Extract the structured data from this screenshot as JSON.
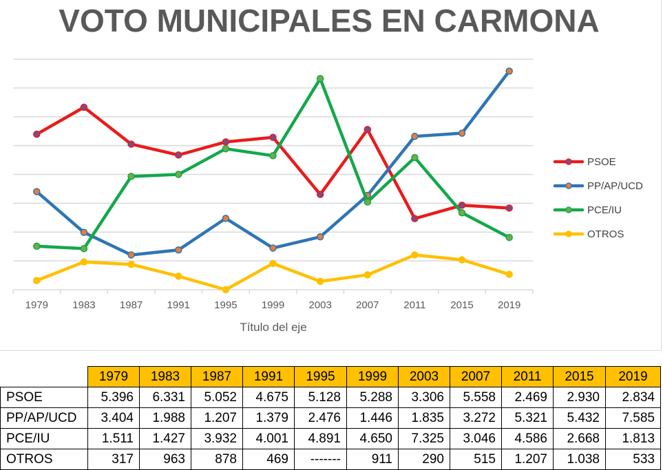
{
  "chart_data": {
    "type": "line",
    "title": "VOTO MUNICIPALES EN CARMONA",
    "xlabel": "Título del eje",
    "ylabel": "",
    "ylim": [
      0,
      8000
    ],
    "y_gridline_step": 1000,
    "y_tick_labels_shown": false,
    "grid": true,
    "legend_position": "right",
    "categories": [
      "1979",
      "1983",
      "1987",
      "1991",
      "1995",
      "1999",
      "2003",
      "2007",
      "2011",
      "2015",
      "2019"
    ],
    "series": [
      {
        "name": "PSOE",
        "color": "#e81c1c",
        "marker_color": "#7b4b8c",
        "values": [
          5396,
          6331,
          5052,
          4675,
          5128,
          5288,
          3306,
          5558,
          2469,
          2930,
          2834
        ]
      },
      {
        "name": "PP/AP/UCD",
        "color": "#2e75b6",
        "marker_color": "#ed7d31",
        "values": [
          3404,
          1988,
          1207,
          1379,
          2476,
          1446,
          1835,
          3272,
          5321,
          5432,
          7585
        ]
      },
      {
        "name": "PCE/IU",
        "color": "#13a84b",
        "marker_color": "#70ad47",
        "values": [
          1511,
          1427,
          3932,
          4001,
          4891,
          4650,
          7325,
          3046,
          4586,
          2668,
          1813
        ]
      },
      {
        "name": "OTROS",
        "color": "#ffc000",
        "marker_color": "#ffc000",
        "values": [
          317,
          963,
          878,
          469,
          0,
          911,
          290,
          515,
          1207,
          1038,
          533
        ]
      }
    ]
  },
  "table": {
    "years": [
      "1979",
      "1983",
      "1987",
      "1991",
      "1995",
      "1999",
      "2003",
      "2007",
      "2011",
      "2015",
      "2019"
    ],
    "rows": [
      {
        "label": "PSOE",
        "cells": [
          "5.396",
          "6.331",
          "5.052",
          "4.675",
          "5.128",
          "5.288",
          "3.306",
          "5.558",
          "2.469",
          "2.930",
          "2.834"
        ]
      },
      {
        "label": "PP/AP/UCD",
        "cells": [
          "3.404",
          "1.988",
          "1.207",
          "1.379",
          "2.476",
          "1.446",
          "1.835",
          "3.272",
          "5.321",
          "5.432",
          "7.585"
        ]
      },
      {
        "label": "PCE/IU",
        "cells": [
          "1.511",
          "1.427",
          "3.932",
          "4.001",
          "4.891",
          "4.650",
          "7.325",
          "3.046",
          "4.586",
          "2.668",
          "1.813"
        ]
      },
      {
        "label": "OTROS",
        "cells": [
          "317",
          "963",
          "878",
          "469",
          "-------",
          "911",
          "290",
          "515",
          "1.207",
          "1.038",
          "533"
        ]
      }
    ]
  },
  "colors": {
    "gridline": "#d9d9d9",
    "header_fill": "#ffc000",
    "text_gray": "#595959"
  }
}
